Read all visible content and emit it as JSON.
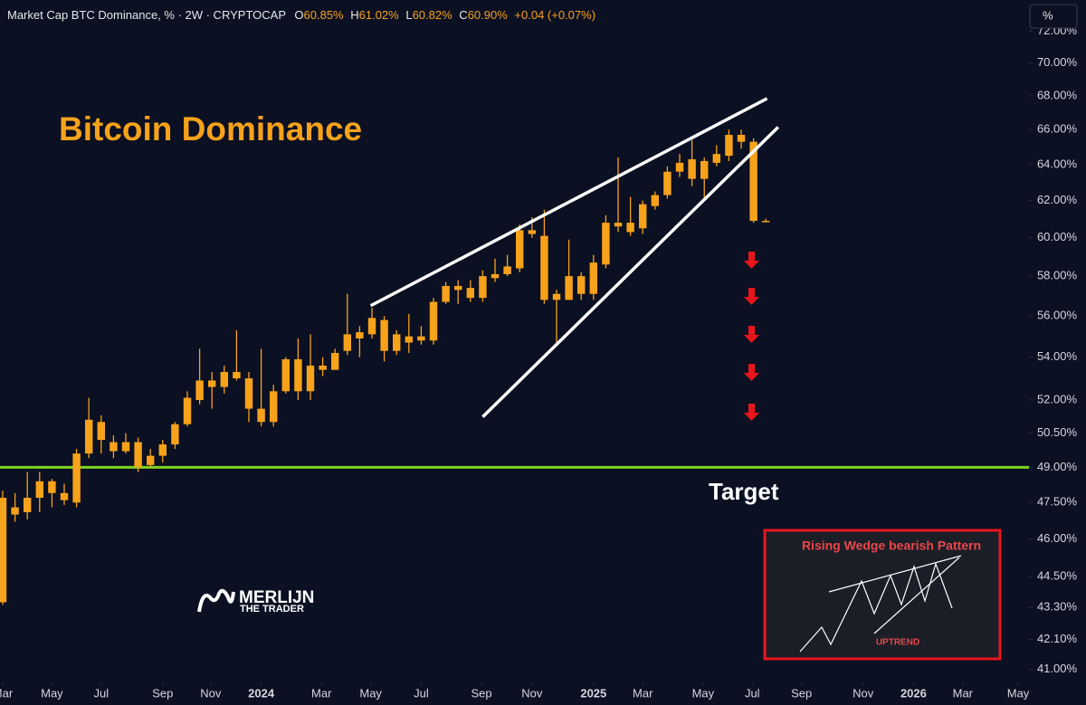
{
  "header": {
    "symbol": "Market Cap BTC Dominance, % · 2W · CRYPTOCAP",
    "fields": [
      {
        "letter": "O",
        "value": "60.85%"
      },
      {
        "letter": "H",
        "value": "61.02%"
      },
      {
        "letter": "L",
        "value": "60.82%"
      },
      {
        "letter": "C",
        "value": "60.90%"
      }
    ],
    "change": "+0.04 (+0.07%)",
    "unit_button": "%"
  },
  "chart_data": {
    "type": "candlestick",
    "title": "Bitcoin Dominance",
    "log_scale": true,
    "categories": [
      null,
      null,
      null,
      null,
      null,
      null,
      null,
      null,
      null,
      null,
      null,
      null,
      null,
      null,
      null,
      null,
      null,
      null,
      null,
      null,
      null,
      null,
      null,
      null,
      null,
      null,
      null,
      null,
      null,
      null,
      null,
      null,
      null,
      null,
      null,
      null,
      null,
      null,
      null,
      null,
      null,
      null,
      null,
      null,
      null,
      null,
      null,
      null,
      null,
      null,
      null,
      null,
      null,
      null,
      null,
      null,
      null,
      null,
      null,
      null,
      null,
      null,
      null
    ],
    "series": [
      {
        "color": "#f7a21b",
        "open": [
          43.5,
          47.3,
          47.1,
          47.7,
          48.4,
          47.9,
          47.5,
          49.6,
          51.0,
          50.1,
          49.7,
          50.1,
          49.1,
          49.5,
          50.0,
          50.9,
          52.0,
          52.9,
          52.6,
          53.3,
          53.0,
          51.6,
          51.0,
          52.4,
          53.9,
          52.4,
          53.6,
          53.4,
          54.3,
          55.2,
          55.1,
          55.8,
          54.3,
          55.0,
          54.8,
          54.8,
          56.7,
          57.5,
          57.4,
          56.9,
          57.9,
          58.1,
          58.4,
          60.4,
          60.1,
          57.1,
          56.8,
          58.0,
          57.1,
          58.6,
          60.8,
          60.3,
          60.5,
          61.7,
          62.3,
          63.6,
          64.3,
          63.2,
          64.1,
          64.5,
          65.7,
          65.3,
          60.85
        ],
        "high": [
          48.0,
          47.9,
          48.8,
          48.8,
          48.5,
          48.3,
          49.8,
          52.1,
          51.3,
          50.4,
          50.5,
          50.3,
          49.8,
          50.2,
          51.0,
          52.4,
          54.4,
          53.3,
          53.6,
          55.3,
          53.3,
          54.4,
          52.7,
          54.0,
          54.9,
          55.1,
          54.0,
          54.4,
          57.1,
          55.5,
          56.4,
          56.0,
          55.3,
          56.1,
          55.5,
          56.9,
          57.7,
          57.8,
          57.8,
          58.3,
          58.9,
          59.1,
          60.7,
          61.1,
          61.5,
          57.3,
          59.9,
          58.2,
          59.1,
          61.2,
          64.4,
          62.2,
          62.0,
          62.5,
          63.9,
          64.6,
          65.4,
          64.4,
          65.1,
          66.0,
          66.0,
          65.5,
          61.02
        ],
        "low": [
          43.4,
          46.7,
          46.8,
          47.1,
          47.3,
          47.4,
          47.3,
          49.4,
          49.6,
          49.4,
          49.6,
          48.8,
          49.0,
          49.2,
          49.8,
          50.8,
          51.8,
          51.6,
          52.3,
          52.9,
          51.0,
          50.8,
          50.8,
          52.3,
          52.0,
          52.0,
          53.1,
          53.4,
          54.1,
          54.0,
          54.9,
          53.8,
          54.1,
          54.2,
          54.6,
          54.6,
          56.6,
          56.6,
          56.7,
          56.7,
          57.7,
          58.0,
          58.2,
          60.0,
          56.6,
          54.6,
          56.8,
          56.8,
          56.8,
          58.4,
          60.3,
          60.1,
          60.2,
          61.5,
          62.1,
          63.3,
          62.8,
          62.1,
          63.9,
          64.2,
          64.9,
          60.8,
          60.82
        ],
        "close": [
          47.7,
          47.0,
          47.7,
          48.4,
          47.9,
          47.6,
          49.6,
          51.1,
          50.2,
          49.7,
          50.1,
          49.0,
          49.5,
          50.0,
          50.9,
          52.1,
          52.9,
          52.6,
          53.3,
          53.0,
          51.6,
          51.0,
          52.4,
          53.9,
          52.4,
          53.6,
          53.4,
          54.2,
          55.1,
          54.9,
          55.9,
          54.3,
          55.1,
          54.7,
          55.0,
          56.7,
          57.5,
          57.3,
          56.9,
          58.0,
          58.1,
          58.5,
          60.4,
          60.2,
          56.8,
          56.8,
          58.0,
          57.1,
          58.7,
          60.8,
          60.6,
          60.8,
          61.8,
          62.3,
          63.6,
          64.1,
          63.2,
          64.2,
          64.6,
          65.7,
          65.3,
          60.9,
          60.9
        ]
      }
    ],
    "xlim": [
      -0.22,
      83.38
    ],
    "xticks": [
      {
        "value": 0,
        "label": "Mar"
      },
      {
        "value": 4.0,
        "label": "May"
      },
      {
        "value": 8.0,
        "label": "Jul"
      },
      {
        "value": 13.0,
        "label": "Sep"
      },
      {
        "value": 16.9,
        "label": "Nov"
      },
      {
        "value": 21.0,
        "label": "2024"
      },
      {
        "value": 25.9,
        "label": "Mar"
      },
      {
        "value": 29.9,
        "label": "May"
      },
      {
        "value": 34.0,
        "label": "Jul"
      },
      {
        "value": 38.9,
        "label": "Sep"
      },
      {
        "value": 43.0,
        "label": "Nov"
      },
      {
        "value": 48.0,
        "label": "2025"
      },
      {
        "value": 52.0,
        "label": "Mar"
      },
      {
        "value": 56.9,
        "label": "May"
      },
      {
        "value": 60.9,
        "label": "Jul"
      },
      {
        "value": 64.9,
        "label": "Sep"
      },
      {
        "value": 69.9,
        "label": "Nov"
      },
      {
        "value": 74.0,
        "label": "2026"
      },
      {
        "value": 78.0,
        "label": "Mar"
      },
      {
        "value": 82.5,
        "label": "May"
      }
    ],
    "ylim": [
      40.5,
      74.0
    ],
    "yticks": [
      {
        "value": 72,
        "label": "72.00%"
      },
      {
        "value": 70,
        "label": "70.00%"
      },
      {
        "value": 68,
        "label": "68.00%"
      },
      {
        "value": 66,
        "label": "66.00%"
      },
      {
        "value": 64,
        "label": "64.00%"
      },
      {
        "value": 62,
        "label": "62.00%"
      },
      {
        "value": 60,
        "label": "60.00%"
      },
      {
        "value": 58,
        "label": "58.00%"
      },
      {
        "value": 56,
        "label": "56.00%"
      },
      {
        "value": 54,
        "label": "54.00%"
      },
      {
        "value": 52,
        "label": "52.00%"
      },
      {
        "value": 50.5,
        "label": "50.50%"
      },
      {
        "value": 49,
        "label": "49.00%"
      },
      {
        "value": 47.5,
        "label": "47.50%"
      },
      {
        "value": 46,
        "label": "46.00%"
      },
      {
        "value": 44.5,
        "label": "44.50%"
      },
      {
        "value": 43.3,
        "label": "43.30%"
      },
      {
        "value": 42.1,
        "label": "42.10%"
      },
      {
        "value": 41,
        "label": "41.00%"
      }
    ],
    "grid": false,
    "hline": {
      "value": 49.0,
      "color": "#7ed321",
      "label": "Target"
    },
    "trendlines": [
      {
        "color": "#ffffff",
        "x": [
          29.9,
          62.1
        ],
        "y": [
          56.51,
          67.84
        ]
      },
      {
        "color": "#ffffff",
        "x": [
          39.0,
          63.0
        ],
        "y": [
          51.23,
          66.15
        ]
      }
    ]
  },
  "inset": {
    "title": "Rising Wedge bearish Pattern",
    "caption": "UPTREND"
  },
  "logo": {
    "name": "MERLIJN",
    "tagline": "THE TRADER"
  }
}
